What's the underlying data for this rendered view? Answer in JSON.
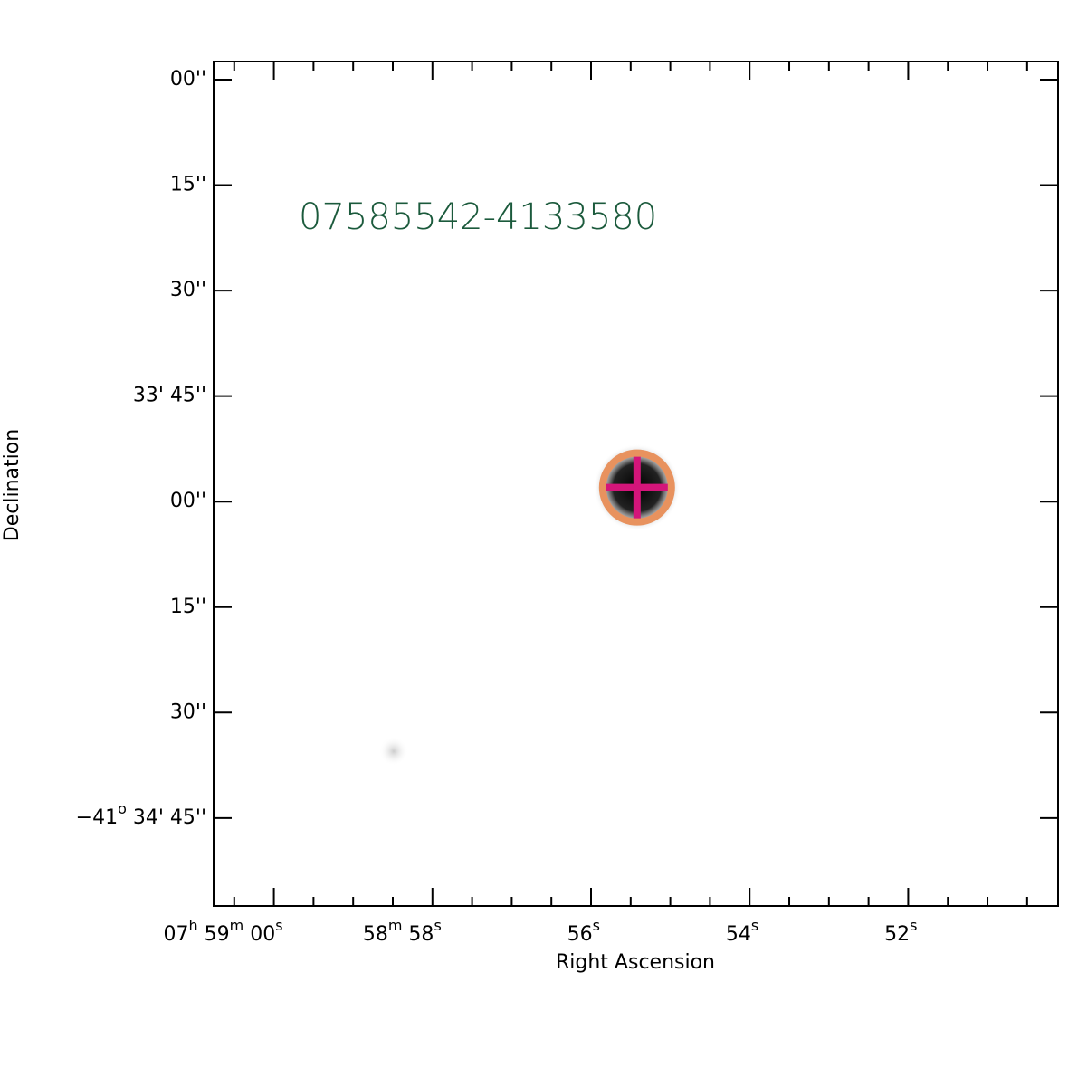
{
  "chart_data": {
    "type": "image",
    "title": "07585542-4133580",
    "xlabel": "Right Ascension",
    "ylabel": "Declination",
    "xlim": [
      60.76,
      50.11
    ],
    "ylim": [
      117.5,
      -2.57
    ],
    "xticks": [
      {
        "value": 60,
        "label": [
          "07",
          "h",
          " 59",
          "m",
          " 00",
          "s"
        ]
      },
      {
        "value": 58,
        "label": [
          "58",
          "m",
          " 58",
          "s"
        ]
      },
      {
        "value": 56,
        "label": [
          "56",
          "s"
        ]
      },
      {
        "value": 54,
        "label": [
          "54",
          "s"
        ]
      },
      {
        "value": 52,
        "label": [
          "52",
          "s"
        ]
      }
    ],
    "xminorticks": [
      60.5,
      59.5,
      59,
      58.5,
      57.5,
      57,
      56.5,
      55.5,
      55,
      54.5,
      53.5,
      53,
      52.5,
      51.5,
      51,
      50.5
    ],
    "yticks": [
      {
        "value": 0,
        "label": [
          "00''"
        ]
      },
      {
        "value": 15,
        "label": [
          "15''"
        ]
      },
      {
        "value": 30,
        "label": [
          "30''"
        ]
      },
      {
        "value": 45,
        "label": [
          "33' 45''"
        ]
      },
      {
        "value": 60,
        "label": [
          "00''"
        ]
      },
      {
        "value": 75,
        "label": [
          "15''"
        ]
      },
      {
        "value": 90,
        "label": [
          "30''"
        ]
      },
      {
        "value": 105,
        "label": [
          "−41",
          "o",
          " 34' 45''"
        ]
      }
    ],
    "source": {
      "x": 55.42,
      "y": 58.0
    },
    "title_color": "#1b5a3c",
    "circle_color": "#e8925e",
    "cross_color": "#d4157a"
  }
}
